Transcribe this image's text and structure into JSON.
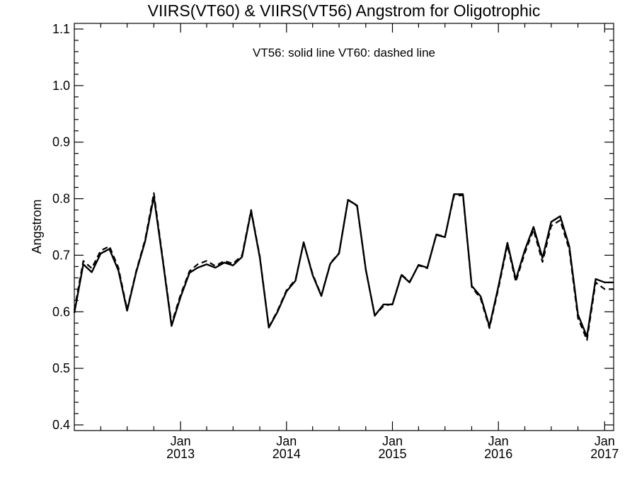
{
  "chart_data": {
    "type": "line",
    "title": "VIIRS(VT60) & VIIRS(VT56)  Angstrom for Oligotrophic",
    "annotation": "VT56: solid line   VT60: dashed line",
    "xlabel": "",
    "ylabel": "Angstrom",
    "ylim": [
      0.39,
      1.11
    ],
    "xlim": [
      "2012-01-01",
      "2017-02-01"
    ],
    "grid": false,
    "y_ticks": [
      "0.4",
      "0.5",
      "0.6",
      "0.7",
      "0.8",
      "0.9",
      "1.0",
      "1.1"
    ],
    "x_ticks": [
      {
        "month": "Jan",
        "year": "2013"
      },
      {
        "month": "Jan",
        "year": "2014"
      },
      {
        "month": "Jan",
        "year": "2015"
      },
      {
        "month": "Jan",
        "year": "2016"
      },
      {
        "month": "Jan",
        "year": "2017"
      }
    ],
    "x": [
      "2012-01",
      "2012-02",
      "2012-03",
      "2012-04",
      "2012-05",
      "2012-06",
      "2012-07",
      "2012-08",
      "2012-09",
      "2012-10",
      "2012-11",
      "2012-12",
      "2013-01",
      "2013-02",
      "2013-03",
      "2013-04",
      "2013-05",
      "2013-06",
      "2013-07",
      "2013-08",
      "2013-09",
      "2013-10",
      "2013-11",
      "2013-12",
      "2014-01",
      "2014-02",
      "2014-03",
      "2014-04",
      "2014-05",
      "2014-06",
      "2014-07",
      "2014-08",
      "2014-09",
      "2014-10",
      "2014-11",
      "2014-12",
      "2015-01",
      "2015-02",
      "2015-03",
      "2015-04",
      "2015-05",
      "2015-06",
      "2015-07",
      "2015-08",
      "2015-09",
      "2015-10",
      "2015-11",
      "2015-12",
      "2016-01",
      "2016-02",
      "2016-03",
      "2016-04",
      "2016-05",
      "2016-06",
      "2016-07",
      "2016-08",
      "2016-09",
      "2016-10",
      "2016-11",
      "2016-12",
      "2017-01",
      "2017-02"
    ],
    "series": [
      {
        "name": "VT56",
        "style": "solid",
        "values": [
          0.598,
          0.684,
          0.67,
          0.703,
          0.711,
          0.673,
          0.602,
          0.67,
          0.725,
          0.804,
          0.69,
          0.575,
          0.626,
          0.669,
          0.678,
          0.684,
          0.678,
          0.687,
          0.682,
          0.697,
          0.778,
          0.696,
          0.572,
          0.6,
          0.636,
          0.655,
          0.723,
          0.665,
          0.628,
          0.685,
          0.703,
          0.798,
          0.788,
          0.675,
          0.593,
          0.613,
          0.613,
          0.665,
          0.652,
          0.683,
          0.678,
          0.736,
          0.732,
          0.808,
          0.808,
          0.646,
          0.627,
          0.574,
          0.645,
          0.722,
          0.657,
          0.709,
          0.75,
          0.695,
          0.759,
          0.769,
          0.716,
          0.595,
          0.556,
          0.658,
          0.652,
          0.652
        ]
      },
      {
        "name": "VT60",
        "style": "dashed",
        "values": [
          0.603,
          0.69,
          0.677,
          0.708,
          0.716,
          0.678,
          0.604,
          0.672,
          0.728,
          0.81,
          0.693,
          0.579,
          0.63,
          0.672,
          0.684,
          0.69,
          0.681,
          0.69,
          0.685,
          0.7,
          0.78,
          0.698,
          0.573,
          0.602,
          0.638,
          0.657,
          0.722,
          0.667,
          0.629,
          0.686,
          0.704,
          0.798,
          0.787,
          0.674,
          0.594,
          0.61,
          0.614,
          0.666,
          0.653,
          0.682,
          0.677,
          0.737,
          0.733,
          0.805,
          0.806,
          0.644,
          0.623,
          0.571,
          0.641,
          0.718,
          0.653,
          0.704,
          0.745,
          0.688,
          0.752,
          0.762,
          0.71,
          0.589,
          0.55,
          0.652,
          0.64,
          0.64
        ]
      }
    ]
  }
}
